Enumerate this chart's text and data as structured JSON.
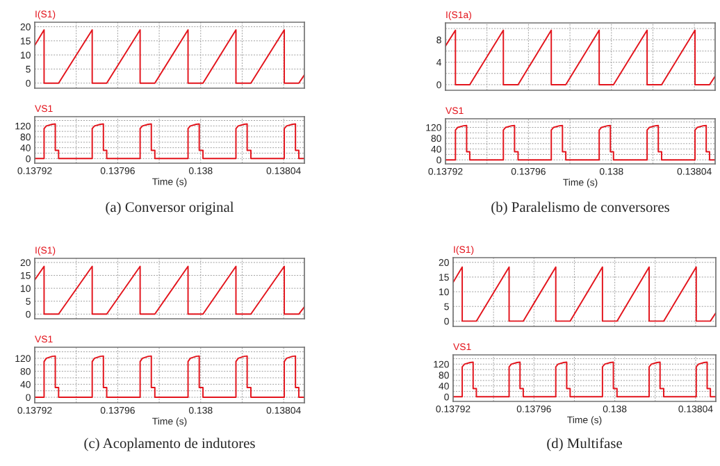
{
  "chart_data": [
    {
      "type": "line",
      "title": "I(S1)",
      "xlim": [
        0.13792,
        0.13805
      ],
      "ylim": [
        -1.8,
        21.6
      ],
      "tick_labels": "y",
      "grid": true,
      "xticks": [
        0.13792,
        {
          "value": 0.13794,
          "label": null
        },
        0.13796,
        {
          "value": 0.13798,
          "label": null
        },
        0.138,
        {
          "value": 0.13802,
          "label": null
        },
        0.13804
      ],
      "yticks": [
        0,
        5,
        10,
        15,
        20
      ],
      "series": [
        {
          "color": "#e3141c",
          "x": [
            0.13792,
            0.1379245,
            0.1379245,
            0.1379315,
            0.1379477,
            0.1379477,
            0.1379547,
            0.1379708,
            0.1379708,
            0.1379779,
            0.1379939,
            0.1379939,
            0.1380011,
            0.138017,
            0.138017,
            0.1380242,
            0.1380403,
            0.1380403,
            0.1380473,
            0.13805
          ],
          "values": [
            13.4,
            18.9,
            0,
            0,
            18.9,
            0,
            0,
            18.9,
            0,
            0,
            18.9,
            0,
            0,
            18.9,
            0,
            0,
            18.9,
            0,
            0,
            2.9
          ]
        }
      ]
    },
    {
      "type": "line",
      "title": "VS1",
      "xlabel": "Time (s)",
      "xlim": [
        0.13792,
        0.13805
      ],
      "ylim": [
        -17,
        154
      ],
      "grid": true,
      "annotations": [
        "(a) Conversor original"
      ],
      "xticks": [
        0.13792,
        {
          "value": 0.13794,
          "label": null
        },
        0.13796,
        {
          "value": 0.13798,
          "label": null
        },
        0.138,
        {
          "value": 0.13802,
          "label": null
        },
        0.13804
      ],
      "yticks": [
        0,
        {
          "value": 20,
          "label": null
        },
        40,
        {
          "value": 60,
          "label": null
        },
        80,
        {
          "value": 100,
          "label": null
        },
        120,
        {
          "value": 140,
          "label": null
        }
      ],
      "series": [
        {
          "color": "#e3141c",
          "x": [
            0.13792,
            0.1379245,
            0.1379245,
            0.1379256,
            0.1379284,
            0.1379299,
            0.1379299,
            0.1379315,
            0.1379315,
            0.1379477,
            0.1379477,
            0.1379488,
            0.1379516,
            0.1379531,
            0.1379531,
            0.1379547,
            0.1379547,
            0.1379708,
            0.1379708,
            0.1379719,
            0.1379747,
            0.1379762,
            0.1379762,
            0.1379779,
            0.1379779,
            0.1379939,
            0.1379939,
            0.137995,
            0.1379978,
            0.1379993,
            0.1379993,
            0.1380011,
            0.1380011,
            0.138017,
            0.138017,
            0.1380181,
            0.1380209,
            0.1380224,
            0.1380224,
            0.1380242,
            0.1380242,
            0.1380403,
            0.1380403,
            0.1380414,
            0.1380442,
            0.1380457,
            0.1380457,
            0.1380473,
            0.1380473,
            0.13805
          ],
          "values": [
            0,
            0,
            110,
            120,
            126,
            127,
            30,
            30,
            0,
            0,
            110,
            120,
            126,
            127,
            30,
            30,
            0,
            0,
            110,
            120,
            126,
            127,
            30,
            30,
            0,
            0,
            110,
            120,
            126,
            127,
            30,
            30,
            0,
            0,
            110,
            120,
            126,
            127,
            30,
            30,
            0,
            0,
            110,
            120,
            126,
            127,
            30,
            30,
            0,
            0
          ]
        }
      ]
    },
    {
      "type": "line",
      "title": "I(S1a)",
      "xlim": [
        0.13792,
        0.13805
      ],
      "ylim": [
        -1.0,
        11.0
      ],
      "tick_labels": "y",
      "grid": true,
      "xticks": [
        0.13792,
        {
          "value": 0.13794,
          "label": null
        },
        0.13796,
        {
          "value": 0.13798,
          "label": null
        },
        0.138,
        {
          "value": 0.13802,
          "label": null
        },
        0.13804
      ],
      "yticks": [
        0,
        {
          "value": 2,
          "label": null
        },
        4,
        {
          "value": 6,
          "label": null
        },
        8,
        {
          "value": 10,
          "label": null
        }
      ],
      "series": [
        {
          "color": "#e3141c",
          "x": [
            0.13792,
            0.1379248,
            0.1379248,
            0.1379317,
            0.1379479,
            0.1379479,
            0.137955,
            0.137971,
            0.137971,
            0.137978,
            0.1379941,
            0.1379941,
            0.138001,
            0.1380172,
            0.1380172,
            0.1380242,
            0.1380403,
            0.1380403,
            0.1380473,
            0.13805
          ],
          "values": [
            6.9,
            9.7,
            0,
            0,
            9.7,
            0,
            0,
            9.7,
            0,
            0,
            9.7,
            0,
            0,
            9.7,
            0,
            0,
            9.7,
            0,
            0,
            1.5
          ]
        }
      ]
    },
    {
      "type": "line",
      "title": "VS1",
      "xlabel": "Time (s)",
      "xlim": [
        0.13792,
        0.13805
      ],
      "ylim": [
        -15,
        152
      ],
      "grid": true,
      "annotations": [
        "(b) Paralelismo de conversores"
      ],
      "xticks": [
        0.13792,
        {
          "value": 0.13794,
          "label": null
        },
        0.13796,
        {
          "value": 0.13798,
          "label": null
        },
        0.138,
        {
          "value": 0.13802,
          "label": null
        },
        0.13804
      ],
      "yticks": [
        0,
        {
          "value": 20,
          "label": null
        },
        40,
        {
          "value": 60,
          "label": null
        },
        80,
        {
          "value": 100,
          "label": null
        },
        120,
        {
          "value": 140,
          "label": null
        }
      ],
      "series": [
        {
          "color": "#e3141c",
          "x": [
            0.13792,
            0.1379248,
            0.1379248,
            0.1379259,
            0.1379287,
            0.1379302,
            0.1379302,
            0.1379317,
            0.1379317,
            0.1379479,
            0.1379479,
            0.137949,
            0.1379518,
            0.1379533,
            0.1379533,
            0.137955,
            0.137955,
            0.137971,
            0.137971,
            0.1379721,
            0.1379749,
            0.1379764,
            0.1379764,
            0.137978,
            0.137978,
            0.1379941,
            0.1379941,
            0.1379952,
            0.137998,
            0.1379995,
            0.1379995,
            0.138001,
            0.138001,
            0.1380172,
            0.1380172,
            0.1380183,
            0.1380211,
            0.1380226,
            0.1380226,
            0.1380242,
            0.1380242,
            0.1380403,
            0.1380403,
            0.1380414,
            0.1380442,
            0.1380457,
            0.1380457,
            0.1380473,
            0.1380473,
            0.13805
          ],
          "values": [
            0,
            0,
            110,
            120,
            126,
            127,
            30,
            30,
            0,
            0,
            110,
            120,
            126,
            127,
            30,
            30,
            0,
            0,
            110,
            120,
            126,
            127,
            30,
            30,
            0,
            0,
            110,
            120,
            126,
            127,
            30,
            30,
            0,
            0,
            110,
            120,
            126,
            127,
            30,
            30,
            0,
            0,
            110,
            120,
            126,
            127,
            30,
            30,
            0,
            0
          ]
        }
      ]
    },
    {
      "type": "line",
      "title": "I(S1)",
      "xlim": [
        0.13792,
        0.13805
      ],
      "ylim": [
        -1.8,
        21.6
      ],
      "tick_labels": "y",
      "grid": true,
      "xticks": [
        0.13792,
        {
          "value": 0.13794,
          "label": null
        },
        0.13796,
        {
          "value": 0.13798,
          "label": null
        },
        0.138,
        {
          "value": 0.13802,
          "label": null
        },
        0.13804
      ],
      "yticks": [
        0,
        5,
        10,
        15,
        20
      ],
      "series": [
        {
          "color": "#e3141c",
          "x": [
            0.13792,
            0.1379245,
            0.1379245,
            0.1379315,
            0.1379477,
            0.1379477,
            0.1379547,
            0.1379708,
            0.1379708,
            0.1379779,
            0.1379939,
            0.1379939,
            0.1380011,
            0.138017,
            0.138017,
            0.1380242,
            0.1380403,
            0.1380403,
            0.1380473,
            0.13805
          ],
          "values": [
            13.3,
            18.5,
            0,
            0,
            18.5,
            0,
            0,
            18.5,
            0,
            0,
            18.5,
            0,
            0,
            18.5,
            0,
            0,
            18.5,
            0,
            0,
            2.8
          ]
        }
      ]
    },
    {
      "type": "line",
      "title": "VS1",
      "xlabel": "Time (s)",
      "xlim": [
        0.13792,
        0.13805
      ],
      "ylim": [
        -17,
        154
      ],
      "grid": true,
      "annotations": [
        "(c) Acoplamento de indutores"
      ],
      "xticks": [
        0.13792,
        {
          "value": 0.13794,
          "label": null
        },
        0.13796,
        {
          "value": 0.13798,
          "label": null
        },
        0.138,
        {
          "value": 0.13802,
          "label": null
        },
        0.13804
      ],
      "yticks": [
        0,
        {
          "value": 20,
          "label": null
        },
        40,
        {
          "value": 60,
          "label": null
        },
        80,
        {
          "value": 100,
          "label": null
        },
        120,
        {
          "value": 140,
          "label": null
        }
      ],
      "series": [
        {
          "color": "#e3141c",
          "x": [
            0.13792,
            0.1379245,
            0.1379245,
            0.1379256,
            0.1379284,
            0.1379299,
            0.1379299,
            0.1379315,
            0.1379315,
            0.1379477,
            0.1379477,
            0.1379488,
            0.1379516,
            0.1379531,
            0.1379531,
            0.1379547,
            0.1379547,
            0.1379708,
            0.1379708,
            0.1379719,
            0.1379747,
            0.1379762,
            0.1379762,
            0.1379779,
            0.1379779,
            0.1379939,
            0.1379939,
            0.137995,
            0.1379978,
            0.1379993,
            0.1379993,
            0.1380011,
            0.1380011,
            0.138017,
            0.138017,
            0.1380181,
            0.1380209,
            0.1380224,
            0.1380224,
            0.1380242,
            0.1380242,
            0.1380403,
            0.1380403,
            0.1380414,
            0.1380442,
            0.1380457,
            0.1380457,
            0.1380473,
            0.1380473,
            0.13805
          ],
          "values": [
            0,
            0,
            110,
            120,
            126,
            127,
            30,
            30,
            0,
            0,
            110,
            120,
            126,
            127,
            30,
            30,
            0,
            0,
            110,
            120,
            126,
            127,
            30,
            30,
            0,
            0,
            110,
            120,
            126,
            127,
            30,
            30,
            0,
            0,
            110,
            120,
            126,
            127,
            30,
            30,
            0,
            0,
            110,
            120,
            126,
            127,
            30,
            30,
            0,
            0
          ]
        }
      ]
    },
    {
      "type": "line",
      "title": "I(S1)",
      "xlim": [
        0.13792,
        0.13805
      ],
      "ylim": [
        -1.8,
        21.6
      ],
      "tick_labels": "y",
      "grid": true,
      "xticks": [
        0.13792,
        {
          "value": 0.13794,
          "label": null
        },
        0.13796,
        {
          "value": 0.13798,
          "label": null
        },
        0.138,
        {
          "value": 0.13802,
          "label": null
        },
        0.13804
      ],
      "yticks": [
        0,
        5,
        10,
        15,
        20
      ],
      "series": [
        {
          "color": "#e3141c",
          "x": [
            0.13792,
            0.1379245,
            0.1379245,
            0.1379315,
            0.1379477,
            0.1379477,
            0.1379547,
            0.1379708,
            0.1379708,
            0.1379779,
            0.1379939,
            0.1379939,
            0.1380011,
            0.138017,
            0.138017,
            0.1380242,
            0.1380403,
            0.1380403,
            0.1380473,
            0.13805
          ],
          "values": [
            13.2,
            18.4,
            0,
            0,
            18.4,
            0,
            0,
            18.4,
            0,
            0,
            18.4,
            0,
            0,
            18.4,
            0,
            0,
            18.4,
            0,
            0,
            2.8
          ]
        }
      ]
    },
    {
      "type": "line",
      "title": "VS1",
      "xlabel": "Time (s)",
      "xlim": [
        0.13792,
        0.13805
      ],
      "ylim": [
        -17,
        154
      ],
      "grid": true,
      "annotations": [
        "(d) Multifase"
      ],
      "xticks": [
        0.13792,
        {
          "value": 0.13794,
          "label": null
        },
        0.13796,
        {
          "value": 0.13798,
          "label": null
        },
        0.138,
        {
          "value": 0.13802,
          "label": null
        },
        0.13804
      ],
      "yticks": [
        0,
        {
          "value": 20,
          "label": null
        },
        40,
        {
          "value": 60,
          "label": null
        },
        80,
        {
          "value": 100,
          "label": null
        },
        120,
        {
          "value": 140,
          "label": null
        }
      ],
      "series": [
        {
          "color": "#e3141c",
          "x": [
            0.13792,
            0.1379245,
            0.1379245,
            0.1379256,
            0.1379284,
            0.1379299,
            0.1379299,
            0.1379315,
            0.1379315,
            0.1379477,
            0.1379477,
            0.1379488,
            0.1379516,
            0.1379531,
            0.1379531,
            0.1379547,
            0.1379547,
            0.1379708,
            0.1379708,
            0.1379719,
            0.1379747,
            0.1379762,
            0.1379762,
            0.1379779,
            0.1379779,
            0.1379939,
            0.1379939,
            0.137995,
            0.1379978,
            0.1379993,
            0.1379993,
            0.1380011,
            0.1380011,
            0.138017,
            0.138017,
            0.1380181,
            0.1380209,
            0.1380224,
            0.1380224,
            0.1380242,
            0.1380242,
            0.1380403,
            0.1380403,
            0.1380414,
            0.1380442,
            0.1380457,
            0.1380457,
            0.1380473,
            0.1380473,
            0.13805
          ],
          "values": [
            0,
            0,
            110,
            120,
            126,
            127,
            30,
            30,
            0,
            0,
            110,
            120,
            126,
            127,
            30,
            30,
            0,
            0,
            110,
            120,
            126,
            127,
            30,
            30,
            0,
            0,
            110,
            120,
            126,
            127,
            30,
            30,
            0,
            0,
            110,
            120,
            126,
            127,
            30,
            30,
            0,
            0,
            110,
            120,
            126,
            127,
            30,
            30,
            0,
            0
          ]
        }
      ]
    }
  ]
}
